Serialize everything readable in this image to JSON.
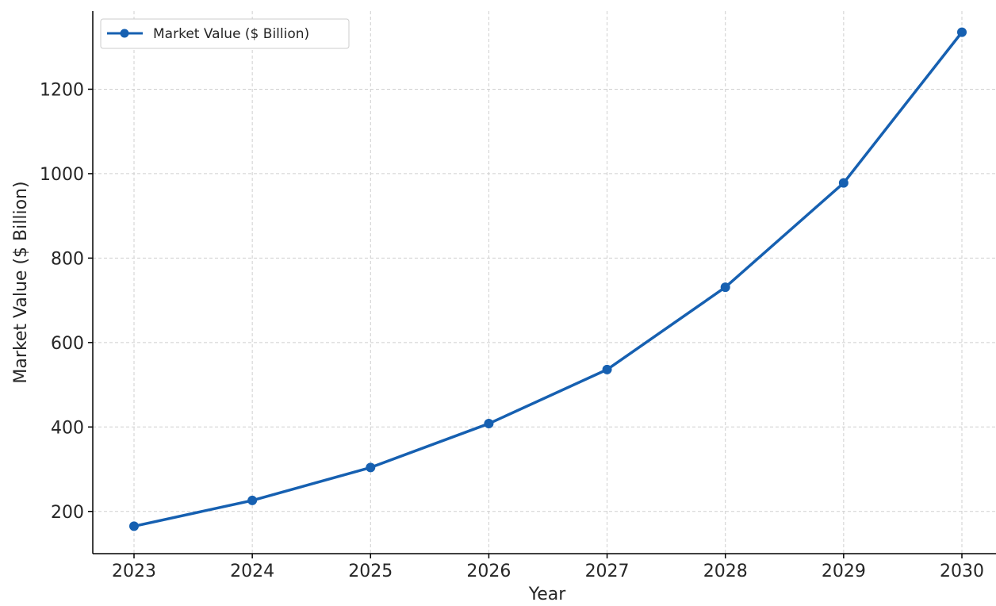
{
  "chart_data": {
    "type": "line",
    "title": "",
    "xlabel": "Year",
    "ylabel": "Market Value ($ Billion)",
    "x": [
      "2023",
      "2024",
      "2025",
      "2026",
      "2027",
      "2028",
      "2029",
      "2030"
    ],
    "series": [
      {
        "name": "Market Value ($ Billion)",
        "values": [
          165,
          226,
          304,
          408,
          536,
          731,
          978,
          1335
        ],
        "color": "#1660b1"
      }
    ],
    "yticks": [
      "200",
      "400",
      "600",
      "800",
      "1000",
      "1200"
    ],
    "ylim": [
      100,
      1385
    ],
    "grid": true,
    "legend_position": "top-left"
  }
}
